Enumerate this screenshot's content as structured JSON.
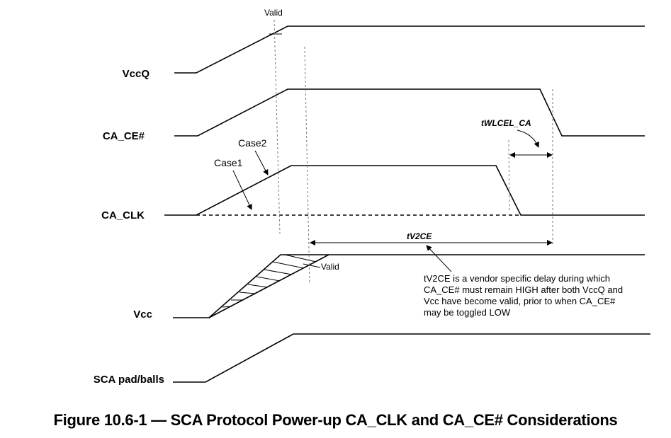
{
  "signals": {
    "vccq": "VccQ",
    "ca_ce": "CA_CE#",
    "ca_clk": "CA_CLK",
    "vcc": "Vcc",
    "sca_pad": "SCA pad/balls"
  },
  "annotations": {
    "valid_top": "Valid",
    "valid_vcc": "Valid",
    "case1": "Case1",
    "case2": "Case2",
    "twlcel": "tWLCEL_CA",
    "tv2ce": "tV2CE"
  },
  "note": {
    "line1": "tV2CE is a vendor specific delay during which",
    "line2": "CA_CE# must remain HIGH after both VccQ and",
    "line3": "Vcc have become valid, prior to when CA_CE#",
    "line4": "may be toggled LOW"
  },
  "caption": "Figure 10.6-1 — SCA Protocol Power-up CA_CLK and CA_CE# Considerations"
}
